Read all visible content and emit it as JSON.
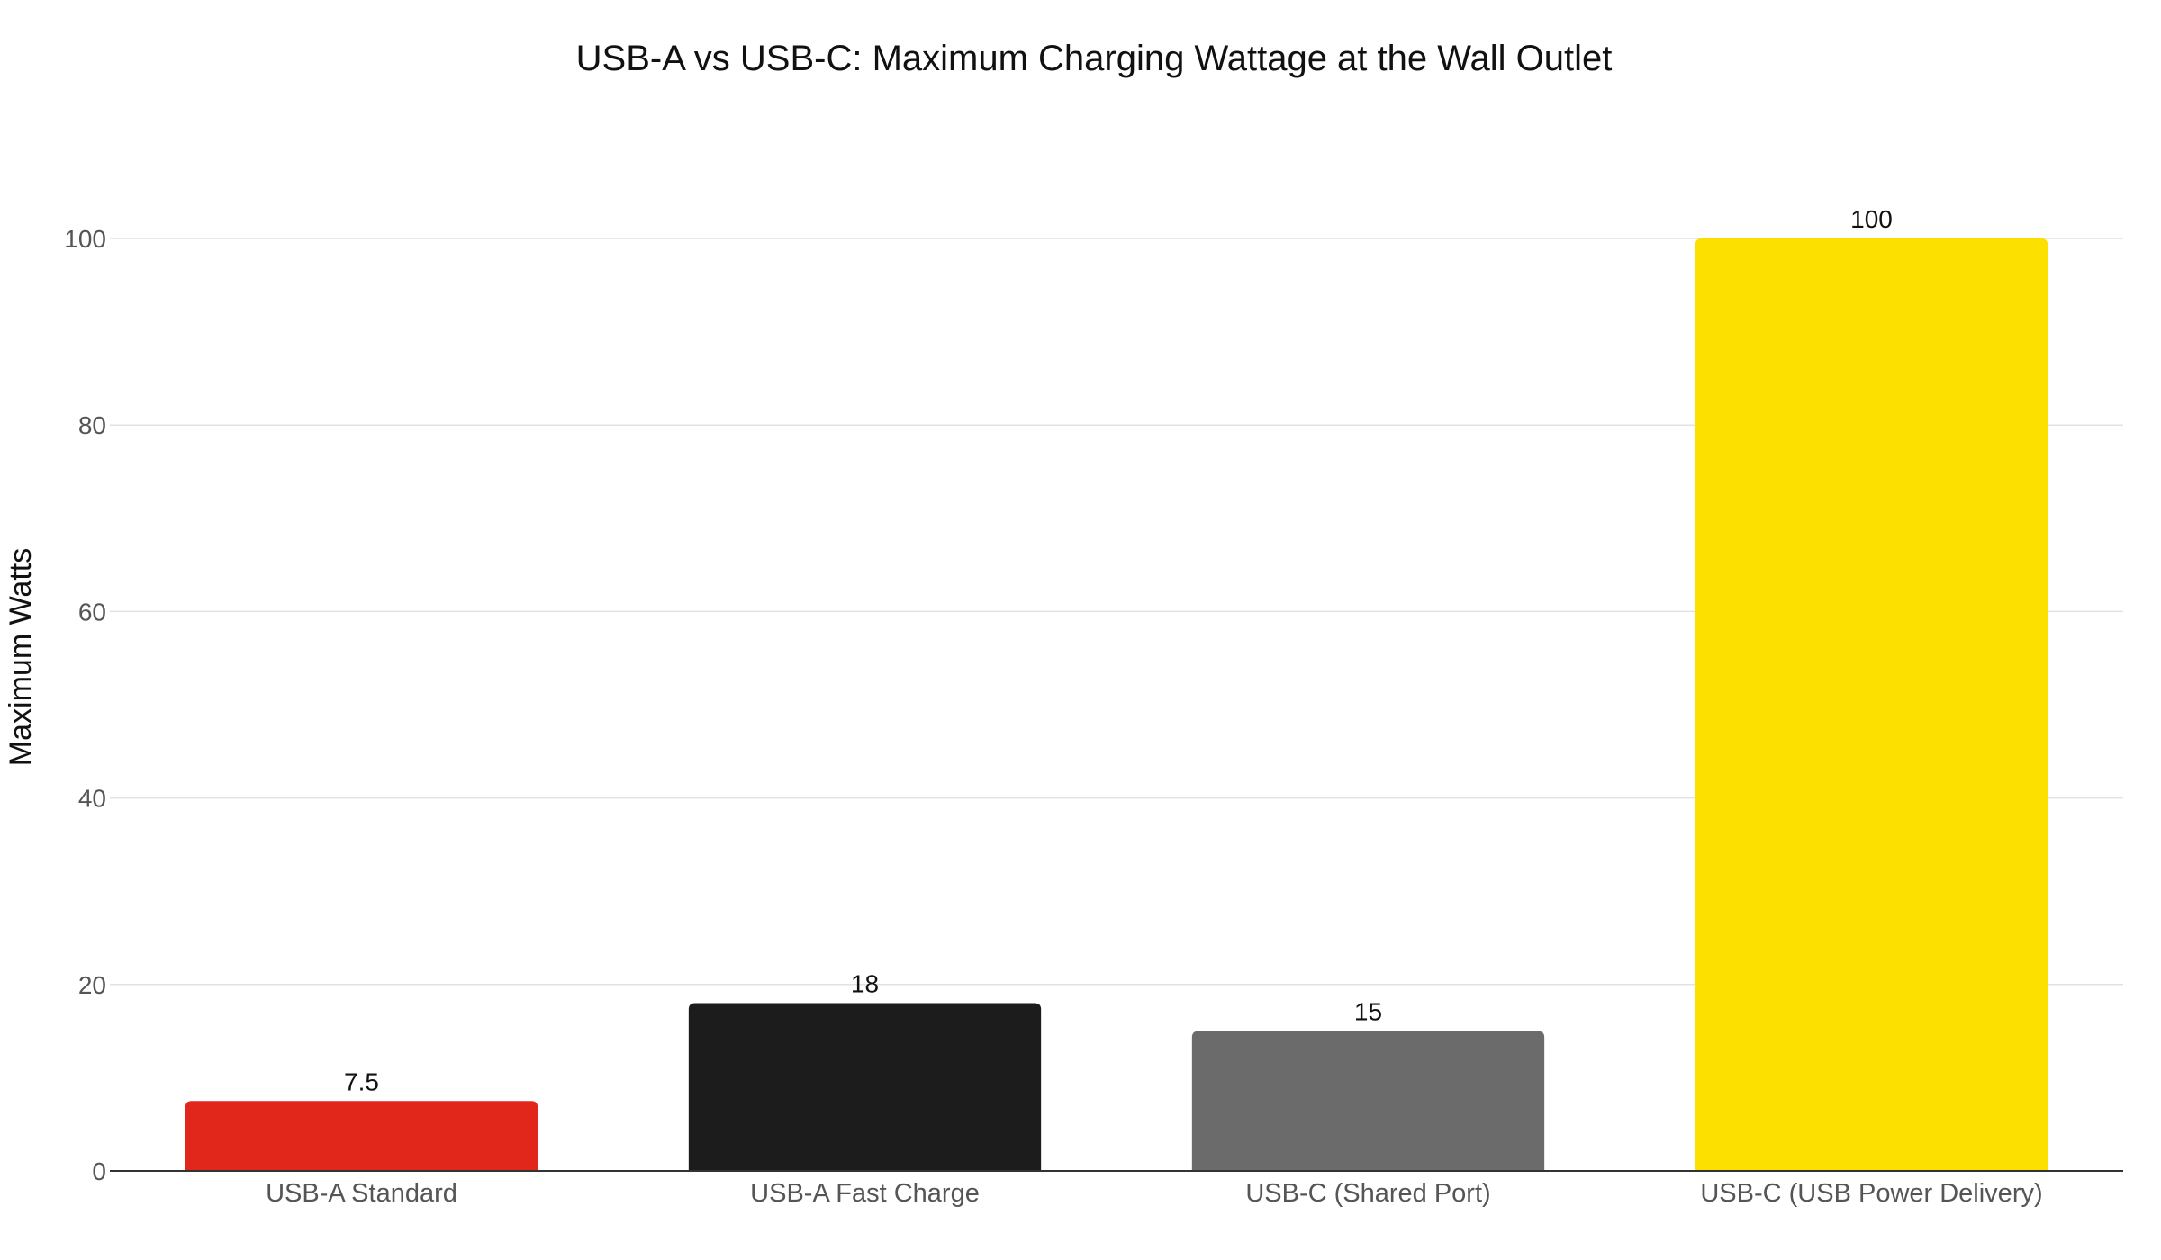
{
  "chart_data": {
    "type": "bar",
    "title": "USB-A vs USB-C: Maximum Charging Wattage at the Wall Outlet",
    "xlabel": "",
    "ylabel": "Maximum Watts",
    "categories": [
      "USB-A Standard",
      "USB-A Fast Charge",
      "USB-C (Shared Port)",
      "USB-C (USB Power Delivery)"
    ],
    "values": [
      7.5,
      18,
      15,
      100
    ],
    "data_labels": [
      "7.5",
      "18",
      "15",
      "100"
    ],
    "colors": [
      "#e1261c",
      "#1c1c1c",
      "#6b6b6b",
      "#fbe000"
    ],
    "ylim": [
      0,
      100
    ],
    "yticks": [
      0,
      20,
      40,
      60,
      80,
      100
    ],
    "grid": true,
    "legend": "none"
  }
}
